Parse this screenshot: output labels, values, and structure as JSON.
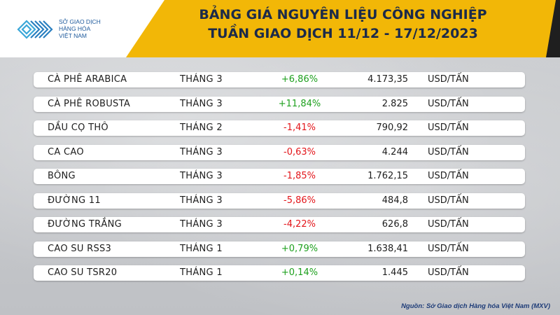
{
  "header": {
    "title_line1": "BẢNG GIÁ NGUYÊN LIỆU CÔNG NGHIỆP",
    "title_line2": "TUẦN GIAO DỊCH 11/12 - 17/12/2023",
    "logo_line1": "SỞ GIAO DỊCH",
    "logo_line2": "HÀNG HÓA",
    "logo_line3": "VIỆT NAM",
    "logo_icon": "mxv-chevron-logo-icon",
    "accent_color": "#f2b707",
    "logo_color": "#1e5a9c"
  },
  "rows": [
    {
      "name": "CÀ PHÊ ARABICA",
      "month": "THÁNG 3",
      "change": "+6,86%",
      "trend": "up",
      "price": "4.173,35",
      "unit": "USD/TẤN"
    },
    {
      "name": "CÀ PHÊ ROBUSTA",
      "month": "THÁNG 3",
      "change": "+11,84%",
      "trend": "up",
      "price": "2.825",
      "unit": "USD/TẤN"
    },
    {
      "name": "DẦU CỌ THÔ",
      "month": "THÁNG 2",
      "change": "-1,41%",
      "trend": "down",
      "price": "790,92",
      "unit": "USD/TẤN"
    },
    {
      "name": "CA CAO",
      "month": "THÁNG 3",
      "change": "-0,63%",
      "trend": "down",
      "price": "4.244",
      "unit": "USD/TẤN"
    },
    {
      "name": "BÔNG",
      "month": "THÁNG 3",
      "change": "-1,85%",
      "trend": "down",
      "price": "1.762,15",
      "unit": "USD/TẤN"
    },
    {
      "name": "ĐƯỜNG 11",
      "month": "THÁNG 3",
      "change": "-5,86%",
      "trend": "down",
      "price": "484,8",
      "unit": "USD/TẤN"
    },
    {
      "name": "ĐƯỜNG TRẮNG",
      "month": "THÁNG 3",
      "change": "-4,22%",
      "trend": "down",
      "price": "626,8",
      "unit": "USD/TẤN"
    },
    {
      "name": "CAO SU RSS3",
      "month": "THÁNG 1",
      "change": "+0,79%",
      "trend": "up",
      "price": "1.638,41",
      "unit": "USD/TẤN"
    },
    {
      "name": "CAO SU TSR20",
      "month": "THÁNG 1",
      "change": "+0,14%",
      "trend": "up",
      "price": "1.445",
      "unit": "USD/TẤN"
    }
  ],
  "colors": {
    "up": "#1ea01e",
    "down": "#e3151a"
  },
  "source": "Nguồn: Sở Giao dịch Hàng hóa Việt Nam (MXV)"
}
